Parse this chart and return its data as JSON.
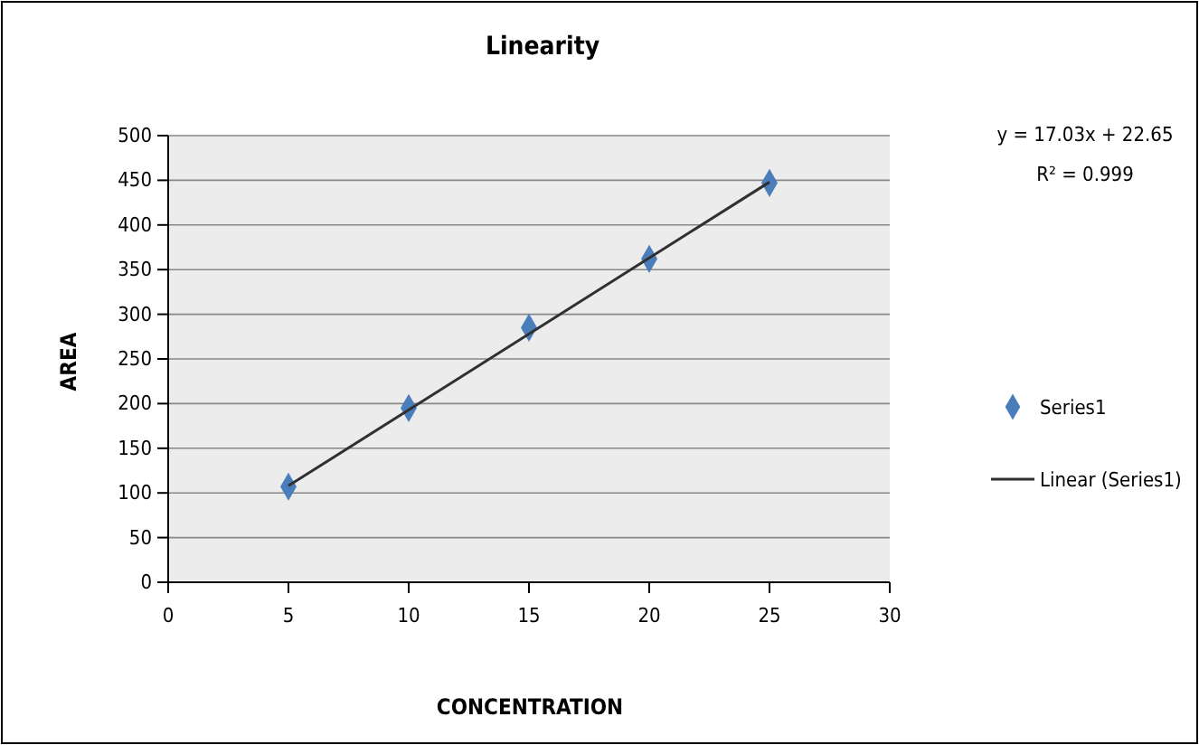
{
  "chart_data": {
    "type": "scatter",
    "title": "Linearity",
    "xlabel": "CONCENTRATION",
    "ylabel": "AREA",
    "xlim": [
      0,
      30
    ],
    "xticks": [
      0,
      5,
      10,
      15,
      20,
      25,
      30
    ],
    "ylim": [
      0,
      500
    ],
    "yticks": [
      0,
      50,
      100,
      150,
      200,
      250,
      300,
      350,
      400,
      450,
      500
    ],
    "grid": "y",
    "legend": "right",
    "annotations": [
      "y = 17.03x + 22.65",
      "R² = 0.999"
    ],
    "series": [
      {
        "name": "Series1",
        "marker": "diamond",
        "color": "#4a7ebb",
        "x": [
          5,
          10,
          15,
          20,
          25
        ],
        "values": [
          107,
          195,
          285,
          362,
          447
        ]
      },
      {
        "name": "Linear (Series1)",
        "type": "line",
        "marker": "none",
        "color": "#303030",
        "x": [
          5,
          25
        ],
        "values": [
          108,
          448
        ]
      }
    ]
  }
}
